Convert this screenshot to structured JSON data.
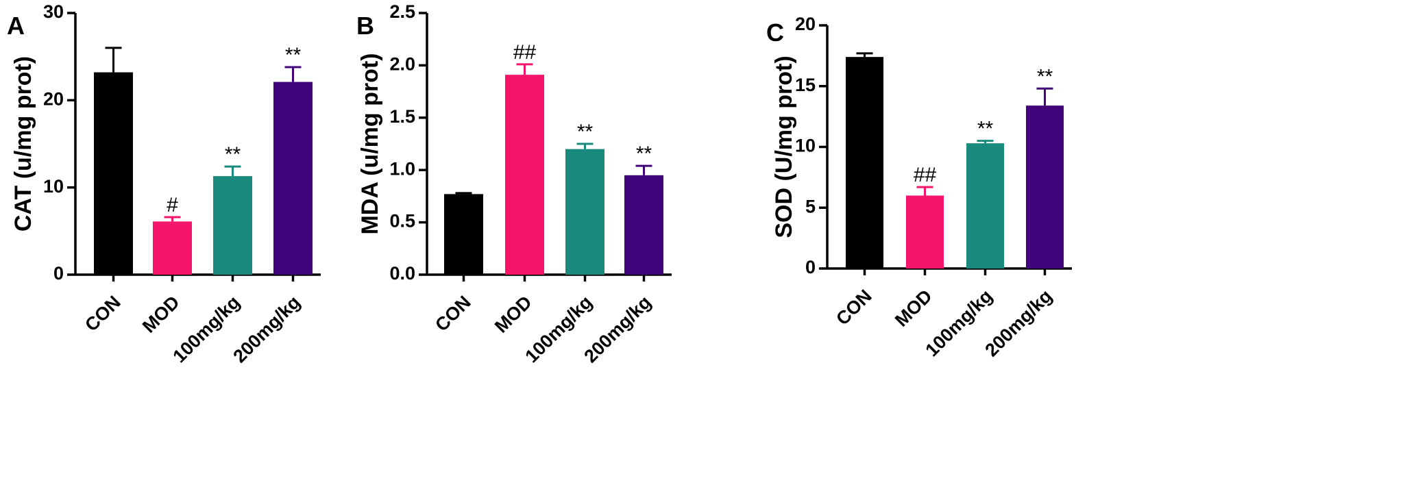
{
  "colors": {
    "CON": "#000000",
    "MOD": "#f5156a",
    "100mg/kg": "#1a8a7e",
    "200mg/kg": "#42047a"
  },
  "chart_data": [
    {
      "type": "bar",
      "panel": "A",
      "title": "",
      "xlabel": "",
      "ylabel": "CAT (u/mg prot)",
      "categories": [
        "CON",
        "MOD",
        "100mg/kg",
        "200mg/kg"
      ],
      "values": [
        23.2,
        6.1,
        11.3,
        22.1
      ],
      "errors": [
        2.8,
        0.5,
        1.1,
        1.7
      ],
      "annotations": [
        "",
        "#",
        "**",
        "**"
      ],
      "ylim": [
        0,
        30
      ],
      "yticks": [
        "0",
        "10",
        "20",
        "30"
      ],
      "ytick_values": [
        0,
        10,
        20,
        30
      ],
      "grid": false,
      "legend": "none"
    },
    {
      "type": "bar",
      "panel": "B",
      "title": "",
      "xlabel": "",
      "ylabel": "MDA (u/mg prot)",
      "categories": [
        "CON",
        "MOD",
        "100mg/kg",
        "200mg/kg"
      ],
      "values": [
        0.77,
        1.91,
        1.2,
        0.95
      ],
      "errors": [
        0.01,
        0.1,
        0.05,
        0.09
      ],
      "annotations": [
        "",
        "##",
        "**",
        "**"
      ],
      "ylim": [
        0,
        2.5
      ],
      "yticks": [
        "0.0",
        "0.5",
        "1.0",
        "1.5",
        "2.0",
        "2.5"
      ],
      "ytick_values": [
        0,
        0.5,
        1.0,
        1.5,
        2.0,
        2.5
      ],
      "grid": false,
      "legend": "none"
    },
    {
      "type": "bar",
      "panel": "C",
      "title": "",
      "xlabel": "",
      "ylabel": "SOD (U/mg prot)",
      "categories": [
        "CON",
        "MOD",
        "100mg/kg",
        "200mg/kg"
      ],
      "values": [
        17.4,
        6.0,
        10.3,
        13.4
      ],
      "errors": [
        0.3,
        0.7,
        0.2,
        1.4
      ],
      "annotations": [
        "",
        "##",
        "**",
        "**"
      ],
      "ylim": [
        0,
        20
      ],
      "yticks": [
        "0",
        "5",
        "10",
        "15",
        "20"
      ],
      "ytick_values": [
        0,
        5,
        10,
        15,
        20
      ],
      "grid": false,
      "legend": "none"
    }
  ]
}
